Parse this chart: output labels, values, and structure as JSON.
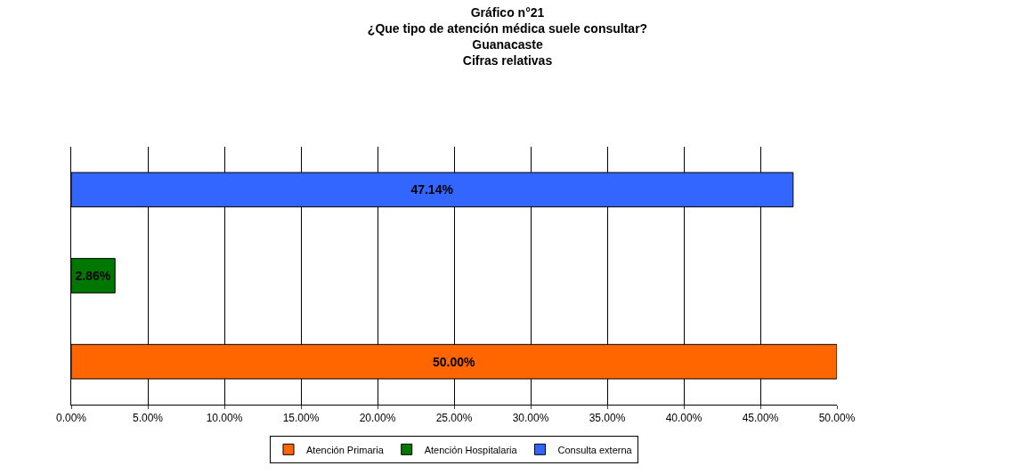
{
  "chart_data": {
    "type": "bar",
    "orientation": "horizontal",
    "title": "Gráfico n°21\n¿Que tipo de atención médica suele consultar?\nGuanacaste\nCifras relativas",
    "categories": [
      null,
      null,
      null
    ],
    "series": [
      {
        "name": "Atención Primaria",
        "color": "#ff6600",
        "values": [
          null,
          null,
          50.0
        ],
        "value_labels": [
          null,
          null,
          "50.00%"
        ]
      },
      {
        "name": "Atención Hospitalaria",
        "color": "#007700",
        "values": [
          null,
          2.86,
          null
        ],
        "value_labels": [
          null,
          "2.86%",
          null
        ]
      },
      {
        "name": "Consulta externa",
        "color": "#3366ff",
        "values": [
          47.14,
          null,
          null
        ],
        "value_labels": [
          "47.14%",
          null,
          null
        ]
      }
    ],
    "xlim": [
      0,
      50
    ],
    "xticks": [
      {
        "value": 0,
        "label": "0.00%"
      },
      {
        "value": 5,
        "label": "5.00%"
      },
      {
        "value": 10,
        "label": "10.00%"
      },
      {
        "value": 15,
        "label": "15.00%"
      },
      {
        "value": 20,
        "label": "20.00%"
      },
      {
        "value": 25,
        "label": "25.00%"
      },
      {
        "value": 30,
        "label": "30.00%"
      },
      {
        "value": 35,
        "label": "35.00%"
      },
      {
        "value": 40,
        "label": "40.00%"
      },
      {
        "value": 45,
        "label": "45.00%"
      },
      {
        "value": 50,
        "label": "50.00%"
      }
    ],
    "grid": "x",
    "legend": "bottom"
  }
}
